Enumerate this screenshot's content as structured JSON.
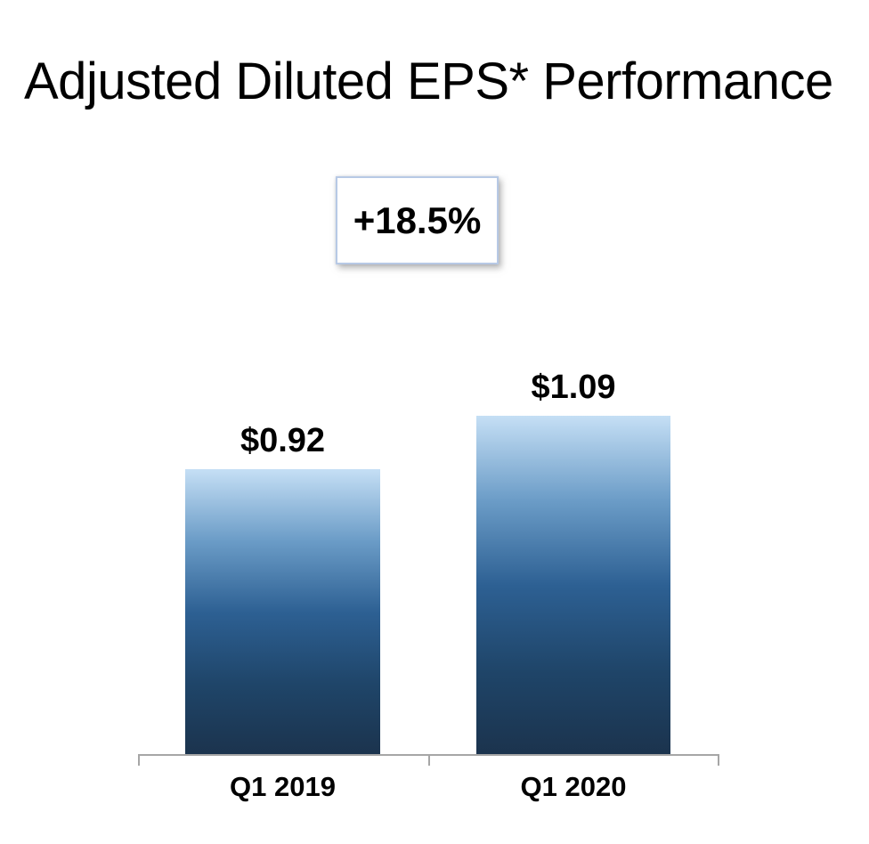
{
  "page": {
    "title": "Adjusted Diluted EPS* Performance"
  },
  "callout": {
    "label": "+18.5%"
  },
  "chart_data": {
    "type": "bar",
    "title": "Adjusted Diluted EPS* Performance",
    "categories": [
      "Q1 2019",
      "Q1 2020"
    ],
    "values": [
      0.92,
      1.09
    ],
    "value_labels": [
      "$0.92",
      "$1.09"
    ],
    "annotation": "+18.5%",
    "xlabel": "",
    "ylabel": "",
    "ylim": [
      0,
      1.2
    ],
    "grid": false,
    "legend": false,
    "colors": {
      "bar_gradient_top": "#c5dff5",
      "bar_gradient_mid": "#2d6093",
      "bar_gradient_bottom": "#1b334d",
      "axis_line": "#a6a6a6",
      "text": "#000000",
      "callout_border": "#b7c9e5",
      "background": "#ffffff"
    }
  }
}
